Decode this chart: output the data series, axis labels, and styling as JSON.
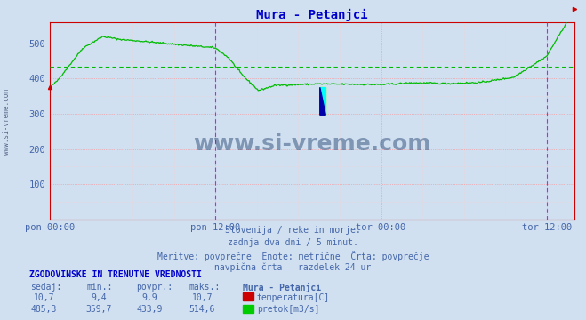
{
  "title": "Mura - Petanjci",
  "title_color": "#0000cc",
  "bg_color": "#d0e0f0",
  "plot_bg_color": "#d0e0f0",
  "grid_color_major": "#ff8888",
  "grid_color_minor": "#ffcccc",
  "line_color_flow": "#00bb00",
  "avg_line_color": "#00bb00",
  "avg_value": 433.9,
  "ylim": [
    0,
    560
  ],
  "yticks": [
    100,
    200,
    300,
    400,
    500
  ],
  "x_tick_labels": [
    "pon 00:00",
    "pon 12:00",
    "tor 00:00",
    "tor 12:00"
  ],
  "x_tick_positions": [
    0.0,
    0.5,
    1.0,
    1.5
  ],
  "xlim_end": 1.583,
  "vline_positions": [
    0.5,
    1.5
  ],
  "vline_color": "#ff00ff",
  "spine_color": "#cc0000",
  "end_marker_color": "#cc0000",
  "subtitle_lines": [
    "Slovenija / reke in morje.",
    "zadnja dva dni / 5 minut.",
    "Meritve: povprečne  Enote: metrične  Črta: povprečje",
    "navpična črta - razdelek 24 ur"
  ],
  "subtitle_color": "#4466aa",
  "table_header": "ZGODOVINSKE IN TRENUTNE VREDNOSTI",
  "table_header_color": "#0000cc",
  "col_headers": [
    "sedaj:",
    "min.:",
    "povpr.:",
    "maks.:",
    "Mura - Petanjci"
  ],
  "row1": [
    "10,7",
    "9,4",
    "9,9",
    "10,7"
  ],
  "row2": [
    "485,3",
    "359,7",
    "433,9",
    "514,6"
  ],
  "row1_label": "temperatura[C]",
  "row2_label": "pretok[m3/s]",
  "row1_color": "#cc0000",
  "row2_color": "#00cc00",
  "text_color": "#4466aa",
  "watermark": "www.si-vreme.com",
  "watermark_color": "#1a3a6a",
  "left_watermark": "www.si-vreme.com"
}
